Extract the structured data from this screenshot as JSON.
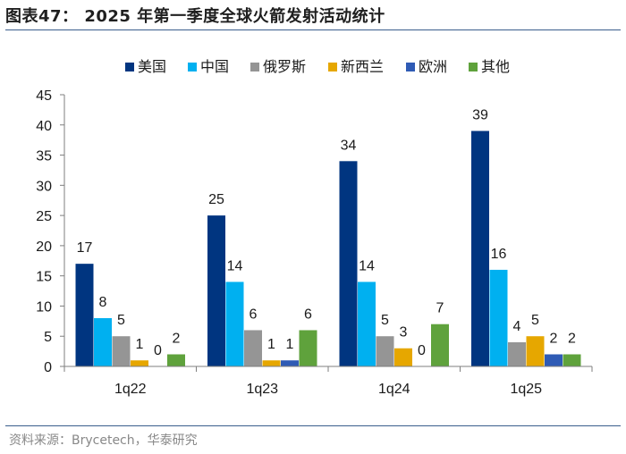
{
  "header": {
    "title": "图表47： 2025 年第一季度全球火箭发射活动统计"
  },
  "footer": {
    "source": "资料来源：Brycetech，华泰研究"
  },
  "chart_data": {
    "type": "bar",
    "categories": [
      "1q22",
      "1q23",
      "1q24",
      "1q25"
    ],
    "series": [
      {
        "name": "美国",
        "color": "#003580",
        "values": [
          17,
          25,
          34,
          39
        ]
      },
      {
        "name": "中国",
        "color": "#00b0f0",
        "values": [
          8,
          14,
          14,
          16
        ]
      },
      {
        "name": "俄罗斯",
        "color": "#959595",
        "values": [
          5,
          6,
          5,
          4
        ]
      },
      {
        "name": "新西兰",
        "color": "#e6a700",
        "values": [
          1,
          1,
          3,
          5
        ]
      },
      {
        "name": "欧洲",
        "color": "#2f5bb5",
        "values": [
          0,
          1,
          0,
          2
        ]
      },
      {
        "name": "其他",
        "color": "#5fa23c",
        "values": [
          2,
          6,
          7,
          2
        ]
      }
    ],
    "ylim": [
      0,
      45
    ],
    "yticks": [
      0,
      5,
      10,
      15,
      20,
      25,
      30,
      35,
      40,
      45
    ],
    "legend_position": "top",
    "grid": false
  }
}
